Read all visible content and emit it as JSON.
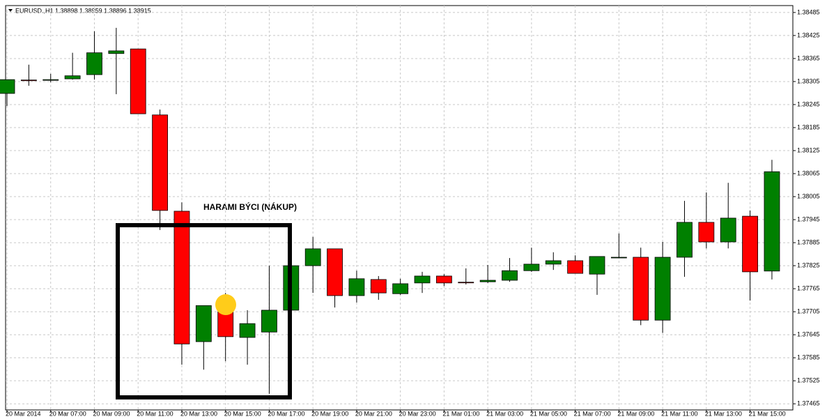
{
  "chart_data": {
    "type": "candlestick",
    "header": "EURUSD.,H1  1.38898 1.38959 1.38896 1.38915",
    "annotation": "HARAMI BÝCI (NÁKUP)",
    "categories": [
      "20 Mar 2014",
      null,
      "20 Mar 07:00",
      null,
      "20 Mar 09:00",
      null,
      "20 Mar 11:00",
      null,
      "20 Mar 13:00",
      null,
      "20 Mar 15:00",
      null,
      "20 Mar 17:00",
      null,
      "20 Mar 19:00",
      null,
      "20 Mar 21:00",
      null,
      "20 Mar 23:00",
      null,
      "21 Mar 01:00",
      null,
      "21 Mar 03:00",
      null,
      "21 Mar 05:00",
      null,
      "21 Mar 07:00",
      null,
      "21 Mar 09:00",
      null,
      "21 Mar 11:00",
      null,
      "21 Mar 13:00",
      null,
      "21 Mar 15:00",
      null
    ],
    "open": [
      1.38274,
      1.38309,
      1.38309,
      1.38312,
      1.38323,
      1.38378,
      1.3839,
      1.38218,
      1.37967,
      1.37627,
      1.37705,
      1.37638,
      1.37652,
      1.37709,
      1.37825,
      1.37869,
      1.37747,
      1.37789,
      1.37752,
      1.3778,
      1.37798,
      1.37782,
      1.37783,
      1.37787,
      1.37812,
      1.37829,
      1.37838,
      1.37803,
      1.37847,
      1.37847,
      1.37683,
      1.37847,
      1.37938,
      1.37887,
      1.37954,
      1.37811
    ],
    "high": [
      1.3831,
      1.38349,
      1.38325,
      1.3838,
      1.38436,
      1.38445,
      1.3839,
      1.38232,
      1.3799,
      1.37721,
      1.37754,
      1.37709,
      1.37825,
      1.37836,
      1.379,
      1.37869,
      1.37812,
      1.37798,
      1.37791,
      1.37809,
      1.37803,
      1.37818,
      1.37827,
      1.37845,
      1.37872,
      1.3786,
      1.37852,
      1.37849,
      1.37909,
      1.37872,
      1.37887,
      1.37994,
      1.38016,
      1.38041,
      1.37969,
      1.38101
    ],
    "low": [
      1.38241,
      1.38294,
      1.38303,
      1.3831,
      1.3831,
      1.38272,
      1.38221,
      1.37918,
      1.37567,
      1.37554,
      1.37576,
      1.37567,
      1.37491,
      1.37709,
      1.37754,
      1.37716,
      1.37729,
      1.37736,
      1.37749,
      1.37754,
      1.37772,
      1.37776,
      1.3778,
      1.37783,
      1.37809,
      1.37814,
      1.37805,
      1.37749,
      1.37847,
      1.3767,
      1.3765,
      1.37796,
      1.3787,
      1.3787,
      1.37734,
      1.37789
    ],
    "close": [
      1.3831,
      1.38308,
      1.3831,
      1.3832,
      1.3838,
      1.38385,
      1.38221,
      1.37969,
      1.37621,
      1.37721,
      1.3764,
      1.37674,
      1.37709,
      1.37825,
      1.37869,
      1.37747,
      1.37791,
      1.37754,
      1.37778,
      1.37798,
      1.3778,
      1.37781,
      1.37787,
      1.37812,
      1.37829,
      1.37838,
      1.37805,
      1.37849,
      1.37847,
      1.37683,
      1.37847,
      1.37938,
      1.37887,
      1.37949,
      1.37809,
      1.3807
    ],
    "up_color": "#008000",
    "down_color": "#ff0000",
    "ylim": [
      1.37449,
      1.38503
    ],
    "yticks": [
      1.38485,
      1.38425,
      1.38365,
      1.38305,
      1.38245,
      1.38185,
      1.38125,
      1.38065,
      1.38005,
      1.37945,
      1.37885,
      1.37825,
      1.37765,
      1.37705,
      1.37645,
      1.37585,
      1.37525,
      1.37465
    ],
    "grid": true
  }
}
